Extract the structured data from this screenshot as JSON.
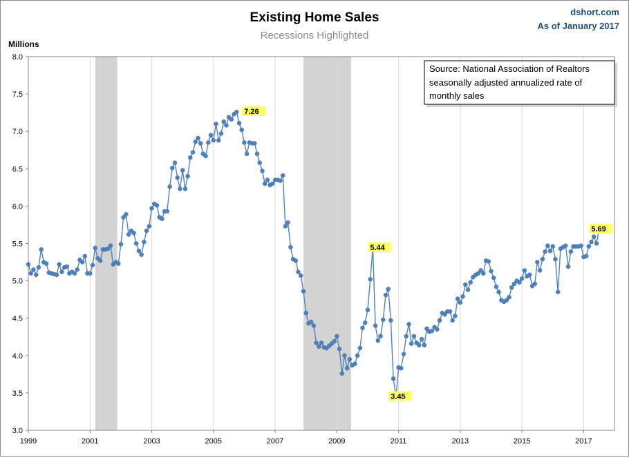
{
  "chart_data": {
    "type": "line",
    "title": "Existing Home Sales",
    "subtitle": "Recessions Highlighted",
    "credit": [
      "dshort.com",
      "As of January 2017"
    ],
    "ylabel": "Millions",
    "xlabel": "",
    "ylim": [
      3.0,
      8.0
    ],
    "y_ticks": [
      "3.0",
      "3.5",
      "4.0",
      "4.5",
      "5.0",
      "5.5",
      "6.0",
      "6.5",
      "7.0",
      "7.5",
      "8.0"
    ],
    "xlim": [
      1999.0,
      2018.0
    ],
    "x_ticks": [
      "1999",
      "2001",
      "2003",
      "2005",
      "2007",
      "2009",
      "2011",
      "2013",
      "2015",
      "2017"
    ],
    "grid": "vertical at each year",
    "source_box": [
      "Source: National Association of Realtors",
      "seasonally adjusted annualized rate of",
      "monthly  sales"
    ],
    "recessions": [
      {
        "start": 2001.17,
        "end": 2001.88
      },
      {
        "start": 2007.92,
        "end": 2009.46
      }
    ],
    "annotations": [
      {
        "label": "7.26",
        "x": 2005.75,
        "y": 7.26
      },
      {
        "label": "5.44",
        "x": 2009.83,
        "y": 5.44
      },
      {
        "label": "3.45",
        "x": 2010.5,
        "y": 3.45
      },
      {
        "label": "5.69",
        "x": 2017.0,
        "y": 5.69
      }
    ],
    "series": [
      {
        "start": 1999.0,
        "step": 0.0833333,
        "values": [
          5.22,
          5.1,
          5.15,
          5.08,
          5.18,
          5.42,
          5.25,
          5.23,
          5.11,
          5.1,
          5.09,
          5.08,
          5.22,
          5.12,
          5.18,
          5.19,
          5.1,
          5.12,
          5.1,
          5.15,
          5.28,
          5.25,
          5.33,
          5.1,
          5.1,
          5.21,
          5.44,
          5.3,
          5.27,
          5.42,
          5.42,
          5.43,
          5.47,
          5.22,
          5.25,
          5.23,
          5.49,
          5.85,
          5.89,
          5.62,
          5.67,
          5.64,
          5.5,
          5.4,
          5.35,
          5.52,
          5.67,
          5.73,
          5.97,
          6.03,
          6.01,
          5.85,
          5.83,
          5.93,
          5.93,
          6.26,
          6.51,
          6.58,
          6.38,
          6.23,
          6.48,
          6.23,
          6.4,
          6.65,
          6.72,
          6.86,
          6.91,
          6.84,
          6.7,
          6.67,
          6.85,
          6.95,
          6.88,
          7.1,
          6.88,
          6.97,
          7.13,
          7.08,
          7.19,
          7.16,
          7.23,
          7.26,
          7.11,
          7.02,
          6.85,
          6.7,
          6.85,
          6.84,
          6.84,
          6.7,
          6.58,
          6.47,
          6.3,
          6.35,
          6.28,
          6.3,
          6.35,
          6.35,
          6.34,
          6.41,
          5.73,
          5.78,
          5.45,
          5.29,
          5.27,
          5.12,
          5.07,
          4.86,
          4.57,
          4.43,
          4.45,
          4.4,
          4.17,
          4.12,
          4.17,
          4.11,
          4.1,
          4.13,
          4.16,
          4.19,
          4.26,
          4.09,
          3.76,
          4.0,
          3.83,
          3.95,
          3.87,
          3.89,
          4.0,
          4.1,
          4.37,
          4.44,
          4.61,
          5.02,
          5.44,
          4.4,
          4.2,
          4.26,
          4.48,
          4.81,
          4.89,
          4.47,
          3.69,
          3.45,
          3.84,
          3.83,
          4.02,
          4.26,
          4.42,
          4.16,
          4.26,
          4.17,
          4.14,
          4.22,
          4.14,
          4.36,
          4.32,
          4.33,
          4.38,
          4.35,
          4.47,
          4.57,
          4.55,
          4.59,
          4.59,
          4.47,
          4.53,
          4.76,
          4.71,
          4.79,
          4.95,
          4.88,
          4.98,
          5.05,
          5.08,
          5.1,
          5.14,
          5.1,
          5.27,
          5.26,
          5.13,
          5.04,
          4.92,
          4.85,
          4.74,
          4.72,
          4.74,
          4.78,
          4.91,
          4.96,
          5.0,
          4.98,
          5.03,
          5.14,
          5.06,
          5.08,
          4.93,
          4.96,
          5.25,
          5.14,
          5.29,
          5.39,
          5.47,
          5.4,
          5.46,
          5.29,
          4.85,
          5.43,
          5.45,
          5.47,
          5.19,
          5.39,
          5.46,
          5.46,
          5.46,
          5.47,
          5.32,
          5.33,
          5.46,
          5.52,
          5.59,
          5.5,
          5.69
        ]
      }
    ]
  }
}
